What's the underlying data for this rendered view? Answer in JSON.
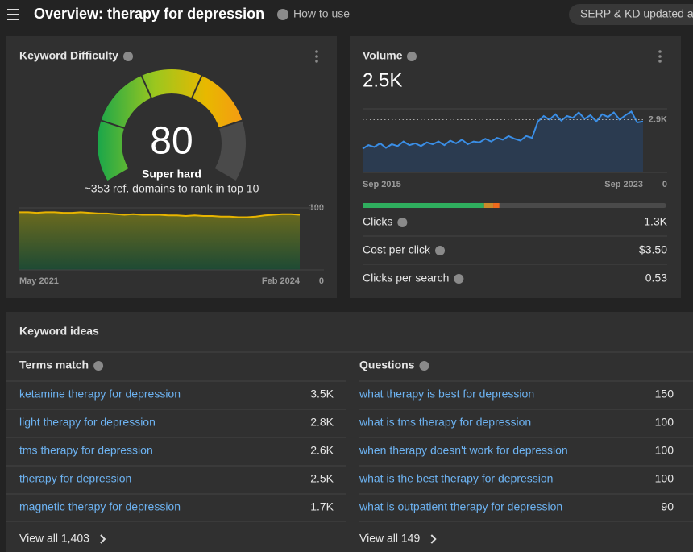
{
  "header": {
    "title": "Overview: therapy for depression",
    "help": "How to use",
    "status": "SERP & KD updated a"
  },
  "keyword_difficulty": {
    "title": "Keyword Difficulty",
    "score": 80,
    "gauge_range": [
      0,
      100
    ],
    "level": "Super hard",
    "note": "~353 ref. domains to rank in top 10",
    "trend": {
      "type": "area",
      "color": "#e8b400",
      "values": [
        93,
        93,
        92,
        93,
        93,
        92,
        92,
        93,
        92,
        91,
        91,
        90,
        89,
        90,
        89,
        89,
        89,
        88,
        88,
        87,
        88,
        87,
        87,
        86,
        86,
        85,
        85,
        86,
        88,
        89,
        90,
        90,
        89
      ],
      "ylim": [
        0,
        100
      ],
      "yticks": [
        0,
        100
      ],
      "x_labels": [
        "May 2021",
        "Feb 2024"
      ]
    }
  },
  "volume": {
    "title": "Volume",
    "value": "2.5K",
    "trend": {
      "type": "area",
      "color": "#3a8ee6",
      "values": [
        1300,
        1500,
        1400,
        1600,
        1350,
        1550,
        1450,
        1700,
        1500,
        1600,
        1450,
        1650,
        1550,
        1700,
        1500,
        1750,
        1600,
        1800,
        1550,
        1700,
        1650,
        1850,
        1700,
        1900,
        1800,
        2000,
        1850,
        1750,
        2000,
        1900,
        2800,
        3100,
        2900,
        3200,
        2850,
        3100,
        3000,
        3300,
        2950,
        3150,
        2800,
        3200,
        3050,
        3300,
        2900,
        3150,
        3350,
        2750,
        2800
      ],
      "ylim": [
        0,
        3500
      ],
      "yticks": [
        0,
        {
          "value": 2900,
          "label": "2.9K"
        }
      ],
      "x_labels": [
        "Sep 2015",
        "Sep 2023"
      ]
    },
    "split": {
      "values": [
        40,
        3,
        2
      ],
      "colors": [
        "#2fae5e",
        "#c98a2a",
        "#f06a1c"
      ]
    },
    "metrics": [
      {
        "label": "Clicks",
        "value": "1.3K"
      },
      {
        "label": "Cost per click",
        "value": "$3.50"
      },
      {
        "label": "Clicks per search",
        "value": "0.53"
      }
    ]
  },
  "keyword_ideas": {
    "title": "Keyword ideas",
    "columns": [
      {
        "title": "Terms match",
        "view_all": "View all 1,403",
        "rows": [
          {
            "keyword": "ketamine therapy for depression",
            "volume": "3.5K"
          },
          {
            "keyword": "light therapy for depression",
            "volume": "2.8K"
          },
          {
            "keyword": "tms therapy for depression",
            "volume": "2.6K"
          },
          {
            "keyword": "therapy for depression",
            "volume": "2.5K"
          },
          {
            "keyword": "magnetic therapy for depression",
            "volume": "1.7K"
          }
        ]
      },
      {
        "title": "Questions",
        "view_all": "View all 149",
        "rows": [
          {
            "keyword": "what therapy is best for depression",
            "volume": "150"
          },
          {
            "keyword": "what is tms therapy for depression",
            "volume": "100"
          },
          {
            "keyword": "when therapy doesn't work for depression",
            "volume": "100"
          },
          {
            "keyword": "what is the best therapy for depression",
            "volume": "100"
          },
          {
            "keyword": "what is outpatient therapy for depression",
            "volume": "90"
          }
        ]
      }
    ]
  }
}
